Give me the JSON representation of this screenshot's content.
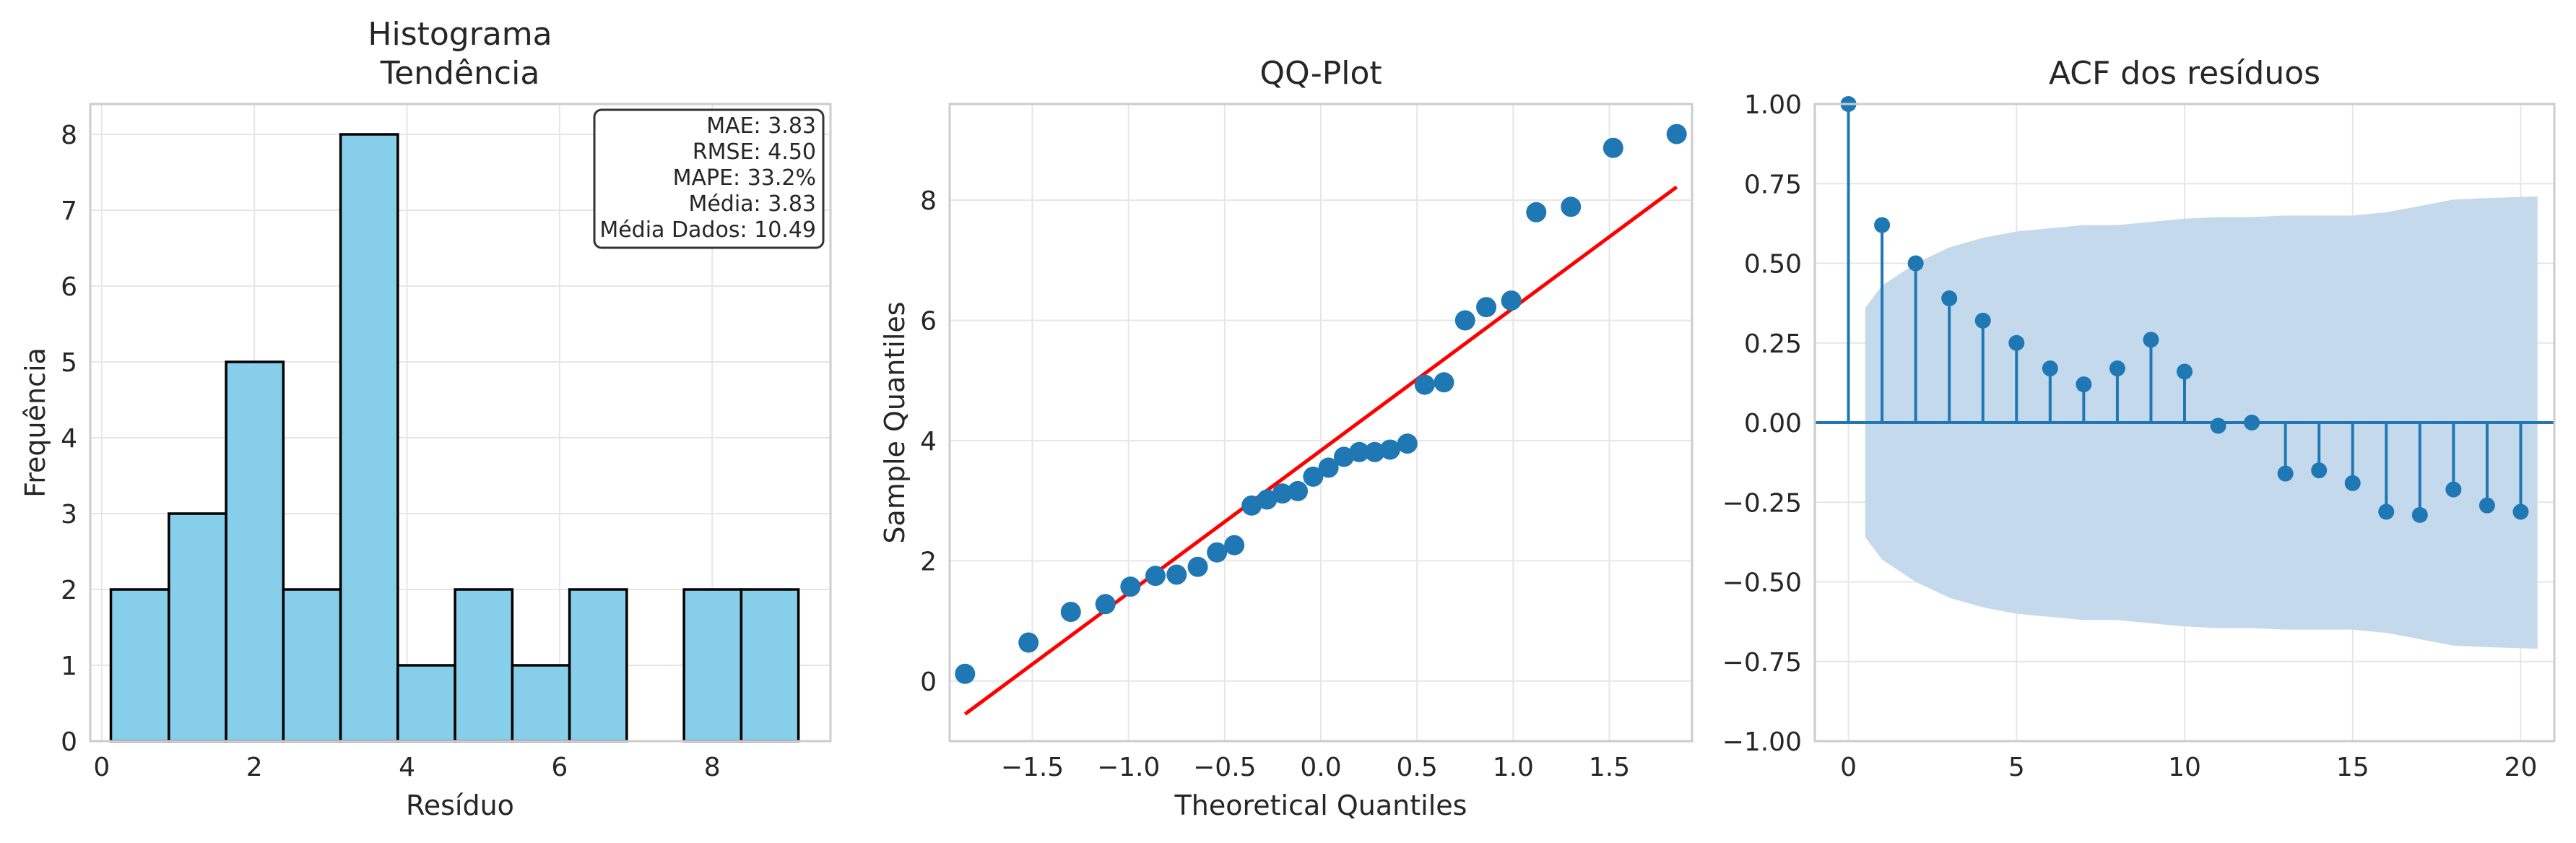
{
  "colors": {
    "hist_fill": "#87ceeb",
    "hist_edge": "#000000",
    "point": "#1f77b4",
    "ref_line": "#ff0000",
    "acf_stem": "#1f77b4",
    "conf_band": "#c5d9ec",
    "grid": "#e6e6e6",
    "spine": "#cccccc"
  },
  "chart_data": [
    {
      "type": "bar",
      "subtype": "histogram",
      "title_line1": "Histograma",
      "title_line2": "Tendência",
      "xlabel": "Resíduo",
      "ylabel": "Frequência",
      "xlim": [
        -0.15,
        9.55
      ],
      "ylim": [
        0,
        8.4
      ],
      "xticks": [
        0,
        2,
        4,
        6,
        8
      ],
      "yticks": [
        0,
        1,
        2,
        3,
        4,
        5,
        6,
        7,
        8
      ],
      "bins": [
        {
          "start": 0.12,
          "end": 0.88,
          "count": 2
        },
        {
          "start": 0.88,
          "end": 1.63,
          "count": 3
        },
        {
          "start": 1.63,
          "end": 2.38,
          "count": 5
        },
        {
          "start": 2.38,
          "end": 3.13,
          "count": 2
        },
        {
          "start": 3.13,
          "end": 3.88,
          "count": 8
        },
        {
          "start": 3.88,
          "end": 4.63,
          "count": 1
        },
        {
          "start": 4.63,
          "end": 5.38,
          "count": 2
        },
        {
          "start": 5.38,
          "end": 6.13,
          "count": 1
        },
        {
          "start": 6.13,
          "end": 6.88,
          "count": 2
        },
        {
          "start": 6.88,
          "end": 7.63,
          "count": 0
        },
        {
          "start": 7.63,
          "end": 8.38,
          "count": 2
        },
        {
          "start": 8.38,
          "end": 9.13,
          "count": 2
        }
      ],
      "stats_box": [
        "MAE: 3.83",
        "RMSE: 4.50",
        "MAPE: 33.2%",
        "Média: 3.83",
        "Média Dados: 10.49"
      ],
      "grid": true
    },
    {
      "type": "scatter",
      "title": "QQ-Plot",
      "xlabel": "Theoretical Quantiles",
      "ylabel": "Sample Quantiles",
      "xlim": [
        -1.93,
        1.93
      ],
      "ylim": [
        -1.0,
        9.6
      ],
      "xticks": [
        -1.5,
        -1.0,
        -0.5,
        0.0,
        0.5,
        1.0,
        1.5
      ],
      "xtick_labels": [
        "−1.5",
        "−1.0",
        "−0.5",
        "0.0",
        "0.5",
        "1.0",
        "1.5"
      ],
      "yticks": [
        0,
        2,
        4,
        6,
        8
      ],
      "points": [
        [
          -1.85,
          0.12
        ],
        [
          -1.52,
          0.64
        ],
        [
          -1.3,
          1.15
        ],
        [
          -1.12,
          1.28
        ],
        [
          -0.99,
          1.57
        ],
        [
          -0.86,
          1.75
        ],
        [
          -0.75,
          1.77
        ],
        [
          -0.64,
          1.9
        ],
        [
          -0.54,
          2.14
        ],
        [
          -0.45,
          2.26
        ],
        [
          -0.36,
          2.92
        ],
        [
          -0.28,
          3.02
        ],
        [
          -0.2,
          3.12
        ],
        [
          -0.12,
          3.16
        ],
        [
          -0.04,
          3.4
        ],
        [
          0.04,
          3.55
        ],
        [
          0.12,
          3.73
        ],
        [
          0.2,
          3.81
        ],
        [
          0.28,
          3.81
        ],
        [
          0.36,
          3.85
        ],
        [
          0.45,
          3.95
        ],
        [
          0.54,
          4.93
        ],
        [
          0.64,
          4.97
        ],
        [
          0.75,
          6.0
        ],
        [
          0.86,
          6.22
        ],
        [
          0.99,
          6.33
        ],
        [
          1.12,
          7.8
        ],
        [
          1.3,
          7.89
        ],
        [
          1.52,
          8.87
        ],
        [
          1.85,
          9.1
        ]
      ],
      "reference_line": [
        [
          -1.85,
          -0.55
        ],
        [
          1.85,
          8.22
        ]
      ],
      "grid": true
    },
    {
      "type": "stem",
      "title": "ACF dos resíduos",
      "xlim": [
        -1.0,
        21.0
      ],
      "ylim": [
        -1.0,
        1.0
      ],
      "xticks": [
        0,
        5,
        10,
        15,
        20
      ],
      "yticks": [
        -1.0,
        -0.75,
        -0.5,
        -0.25,
        0.0,
        0.25,
        0.5,
        0.75,
        1.0
      ],
      "ytick_labels": [
        "−1.00",
        "−0.75",
        "−0.50",
        "−0.25",
        "0.00",
        "0.25",
        "0.50",
        "0.75",
        "1.00"
      ],
      "lags": [
        0,
        1,
        2,
        3,
        4,
        5,
        6,
        7,
        8,
        9,
        10,
        11,
        12,
        13,
        14,
        15,
        16,
        17,
        18,
        19,
        20
      ],
      "values": [
        1.0,
        0.62,
        0.5,
        0.39,
        0.32,
        0.25,
        0.17,
        0.12,
        0.17,
        0.26,
        0.16,
        -0.01,
        0.0,
        -0.16,
        -0.15,
        -0.19,
        -0.28,
        -0.29,
        -0.21,
        -0.26,
        -0.28
      ],
      "confidence_band": {
        "lags": [
          0.5,
          1,
          2,
          3,
          4,
          5,
          6,
          7,
          8,
          9,
          10,
          11,
          12,
          13,
          14,
          15,
          16,
          17,
          18,
          19,
          20.5
        ],
        "upper": [
          0.36,
          0.43,
          0.5,
          0.55,
          0.58,
          0.6,
          0.61,
          0.62,
          0.62,
          0.63,
          0.64,
          0.645,
          0.645,
          0.65,
          0.65,
          0.65,
          0.66,
          0.68,
          0.7,
          0.705,
          0.71
        ],
        "lower": [
          -0.36,
          -0.43,
          -0.5,
          -0.55,
          -0.58,
          -0.6,
          -0.61,
          -0.62,
          -0.62,
          -0.63,
          -0.64,
          -0.645,
          -0.645,
          -0.65,
          -0.65,
          -0.65,
          -0.66,
          -0.68,
          -0.7,
          -0.705,
          -0.71
        ]
      },
      "grid": true
    }
  ]
}
